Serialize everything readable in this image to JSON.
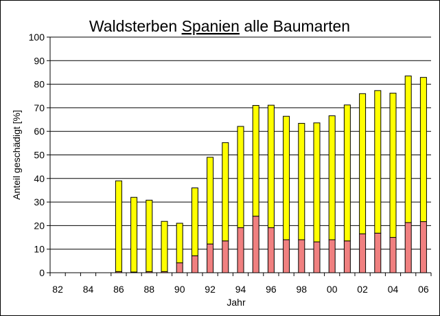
{
  "chart_data": {
    "type": "bar",
    "stacked": true,
    "title_parts": [
      "Waldsterben ",
      "Spanien",
      " alle Baumarten"
    ],
    "title_underlined_index": 1,
    "xlabel": "Jahr",
    "ylabel": "Anteil geschädigt [%]",
    "ylim": [
      0,
      100
    ],
    "yticks": [
      0,
      10,
      20,
      30,
      40,
      50,
      60,
      70,
      80,
      90,
      100
    ],
    "grid": true,
    "categories": [
      "82",
      "83",
      "84",
      "85",
      "86",
      "87",
      "88",
      "89",
      "90",
      "91",
      "92",
      "93",
      "94",
      "95",
      "96",
      "97",
      "98",
      "99",
      "00",
      "01",
      "02",
      "03",
      "04",
      "05",
      "06"
    ],
    "xtick_labels": [
      "82",
      "84",
      "86",
      "88",
      "90",
      "92",
      "94",
      "96",
      "98",
      "00",
      "02",
      "04",
      "06"
    ],
    "series": [
      {
        "color": "#f08080",
        "values": [
          0,
          0,
          0,
          0,
          0.5,
          0.3,
          0.5,
          0.5,
          4.2,
          7.2,
          12.2,
          13.5,
          19.1,
          24.0,
          19.1,
          14.0,
          14.0,
          13.1,
          14.0,
          13.5,
          16.5,
          16.8,
          15.0,
          21.3,
          21.7
        ]
      },
      {
        "color": "#ffff00",
        "values": [
          0,
          0,
          0,
          0,
          38.5,
          31.7,
          30.3,
          21.3,
          16.8,
          28.8,
          36.8,
          41.7,
          43.0,
          47.0,
          52.0,
          52.4,
          49.4,
          50.5,
          52.6,
          57.7,
          59.5,
          60.5,
          61.2,
          62.2,
          61.2
        ]
      }
    ]
  }
}
